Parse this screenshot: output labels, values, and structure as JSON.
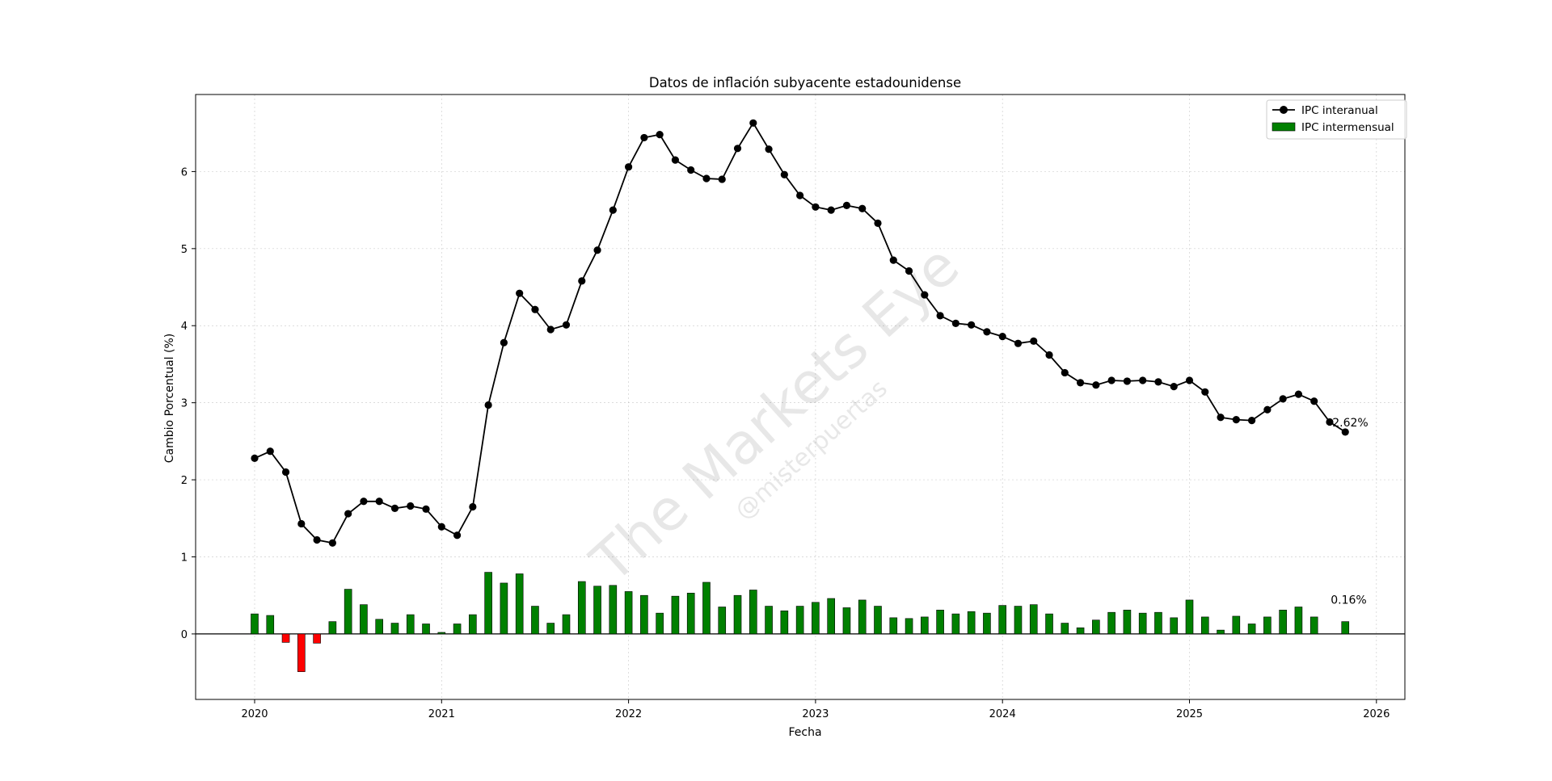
{
  "chart_data": {
    "type": "line",
    "title": "Datos de inflación subyacente estadounidense",
    "xlabel": "Fecha",
    "ylabel": "Cambio Porcentual (%)",
    "x_ticks": [
      "2020",
      "2021",
      "2022",
      "2023",
      "2024",
      "2025",
      "2026"
    ],
    "y_ticks": [
      0,
      1,
      2,
      3,
      4,
      5,
      6
    ],
    "ylim": [
      -0.85,
      7.0
    ],
    "grid": true,
    "legend_position": "top-right",
    "start_month": "2020-01",
    "series": [
      {
        "name": "IPC interanual",
        "type": "line",
        "color": "#000000",
        "values": [
          2.28,
          2.37,
          2.1,
          1.43,
          1.22,
          1.18,
          1.56,
          1.72,
          1.72,
          1.63,
          1.66,
          1.62,
          1.39,
          1.28,
          1.65,
          2.97,
          3.78,
          4.42,
          4.21,
          3.95,
          4.01,
          4.58,
          4.98,
          5.5,
          6.06,
          6.44,
          6.48,
          6.15,
          6.02,
          5.91,
          5.9,
          6.3,
          6.63,
          6.29,
          5.96,
          5.69,
          5.54,
          5.5,
          5.56,
          5.52,
          5.33,
          4.85,
          4.71,
          4.4,
          4.13,
          4.03,
          4.01,
          3.92,
          3.86,
          3.77,
          3.8,
          3.62,
          3.39,
          3.26,
          3.23,
          3.29,
          3.28,
          3.29,
          3.27,
          3.21,
          3.29,
          3.14,
          2.81,
          2.78,
          2.77,
          2.91,
          3.05,
          3.11,
          3.02,
          2.75,
          2.62
        ]
      },
      {
        "name": "IPC intermensual",
        "type": "bar",
        "color": "#008000",
        "negative_color": "#ff0000",
        "values": [
          0.26,
          0.24,
          -0.11,
          -0.49,
          -0.12,
          0.16,
          0.58,
          0.38,
          0.19,
          0.14,
          0.25,
          0.13,
          0.02,
          0.13,
          0.25,
          0.8,
          0.66,
          0.78,
          0.36,
          0.14,
          0.25,
          0.68,
          0.62,
          0.63,
          0.55,
          0.5,
          0.27,
          0.49,
          0.53,
          0.67,
          0.35,
          0.5,
          0.57,
          0.36,
          0.3,
          0.36,
          0.41,
          0.46,
          0.34,
          0.44,
          0.36,
          0.21,
          0.2,
          0.22,
          0.31,
          0.26,
          0.29,
          0.27,
          0.37,
          0.36,
          0.38,
          0.26,
          0.14,
          0.08,
          0.18,
          0.28,
          0.31,
          0.27,
          0.28,
          0.21,
          0.44,
          0.22,
          0.05,
          0.23,
          0.13,
          0.22,
          0.31,
          0.35,
          0.22,
          null,
          0.16
        ]
      }
    ],
    "annotations": [
      "2.62%",
      "0.16%"
    ]
  },
  "watermark": {
    "main": "The Markets Eye",
    "handle": "@misterpuertas"
  }
}
